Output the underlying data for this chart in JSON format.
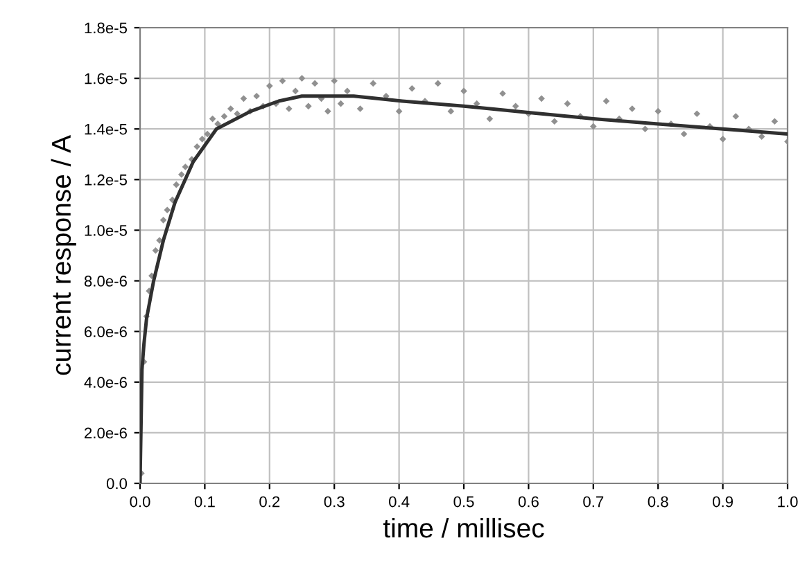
{
  "chart_data": {
    "type": "scatter",
    "xlabel": "time / millisec",
    "ylabel": "current response / A",
    "xlim": [
      0,
      1.0
    ],
    "ylim": [
      0,
      1.8e-05
    ],
    "xticks": [
      {
        "value": 0,
        "label": "0.0"
      },
      {
        "value": 0.1,
        "label": "0.1"
      },
      {
        "value": 0.2,
        "label": "0.2"
      },
      {
        "value": 0.3,
        "label": "0.3"
      },
      {
        "value": 0.4,
        "label": "0.4"
      },
      {
        "value": 0.5,
        "label": "0.5"
      },
      {
        "value": 0.6,
        "label": "0.6"
      },
      {
        "value": 0.7,
        "label": "0.7"
      },
      {
        "value": 0.8,
        "label": "0.8"
      },
      {
        "value": 0.9,
        "label": "0.9"
      },
      {
        "value": 1.0,
        "label": "1.0"
      }
    ],
    "yticks": [
      {
        "value": 0,
        "label": "0.0"
      },
      {
        "value": 2e-06,
        "label": "2.0e-6"
      },
      {
        "value": 4e-06,
        "label": "4.0e-6"
      },
      {
        "value": 6e-06,
        "label": "6.0e-6"
      },
      {
        "value": 8e-06,
        "label": "8.0e-6"
      },
      {
        "value": 1e-05,
        "label": "1.0e-5"
      },
      {
        "value": 1.2e-05,
        "label": "1.2e-5"
      },
      {
        "value": 1.4e-05,
        "label": "1.4e-5"
      },
      {
        "value": 1.6e-05,
        "label": "1.6e-5"
      },
      {
        "value": 1.8e-05,
        "label": "1.8e-5"
      }
    ],
    "grid": true,
    "series": [
      {
        "color": "#909090",
        "marker": "diamond",
        "x": [
          0.002,
          0.006,
          0.01,
          0.014,
          0.018,
          0.024,
          0.03,
          0.036,
          0.042,
          0.05,
          0.056,
          0.064,
          0.07,
          0.08,
          0.088,
          0.096,
          0.104,
          0.112,
          0.12,
          0.13,
          0.14,
          0.15,
          0.16,
          0.17,
          0.18,
          0.19,
          0.2,
          0.21,
          0.22,
          0.23,
          0.24,
          0.25,
          0.26,
          0.27,
          0.28,
          0.29,
          0.3,
          0.31,
          0.32,
          0.34,
          0.36,
          0.38,
          0.4,
          0.42,
          0.44,
          0.46,
          0.48,
          0.5,
          0.52,
          0.54,
          0.56,
          0.58,
          0.6,
          0.62,
          0.64,
          0.66,
          0.68,
          0.7,
          0.72,
          0.74,
          0.76,
          0.78,
          0.8,
          0.82,
          0.84,
          0.86,
          0.88,
          0.9,
          0.92,
          0.94,
          0.96,
          0.98,
          1.0
        ],
        "values": [
          4e-07,
          4.8e-06,
          6.6e-06,
          7.6e-06,
          8.2e-06,
          9.2e-06,
          9.6e-06,
          1.04e-05,
          1.08e-05,
          1.12e-05,
          1.18e-05,
          1.22e-05,
          1.25e-05,
          1.28e-05,
          1.33e-05,
          1.36e-05,
          1.38e-05,
          1.44e-05,
          1.42e-05,
          1.45e-05,
          1.48e-05,
          1.46e-05,
          1.52e-05,
          1.47e-05,
          1.53e-05,
          1.49e-05,
          1.57e-05,
          1.5e-05,
          1.59e-05,
          1.48e-05,
          1.55e-05,
          1.6e-05,
          1.49e-05,
          1.58e-05,
          1.52e-05,
          1.47e-05,
          1.59e-05,
          1.5e-05,
          1.55e-05,
          1.48e-05,
          1.58e-05,
          1.53e-05,
          1.47e-05,
          1.56e-05,
          1.51e-05,
          1.58e-05,
          1.47e-05,
          1.55e-05,
          1.5e-05,
          1.44e-05,
          1.54e-05,
          1.49e-05,
          1.46e-05,
          1.52e-05,
          1.43e-05,
          1.5e-05,
          1.45e-05,
          1.41e-05,
          1.51e-05,
          1.44e-05,
          1.48e-05,
          1.4e-05,
          1.47e-05,
          1.42e-05,
          1.38e-05,
          1.46e-05,
          1.41e-05,
          1.36e-05,
          1.45e-05,
          1.4e-05,
          1.37e-05,
          1.43e-05,
          1.35e-05
        ]
      },
      {
        "type": "line",
        "color": "#303030",
        "marker": "none",
        "line_style": "solid",
        "x": [
          0,
          0.003,
          0.006,
          0.01,
          0.021,
          0.036,
          0.054,
          0.082,
          0.118,
          0.171,
          0.214,
          0.25,
          0.33,
          0.405,
          0.5,
          0.6,
          0.7,
          0.8,
          0.9,
          1.0
        ],
        "values": [
          0,
          4.5e-06,
          5.5e-06,
          6.5e-06,
          8e-06,
          9.6e-06,
          1.11e-05,
          1.27e-05,
          1.4e-05,
          1.47e-05,
          1.51e-05,
          1.53e-05,
          1.53e-05,
          1.51e-05,
          1.49e-05,
          1.465e-05,
          1.44e-05,
          1.42e-05,
          1.4e-05,
          1.38e-05
        ]
      }
    ]
  }
}
